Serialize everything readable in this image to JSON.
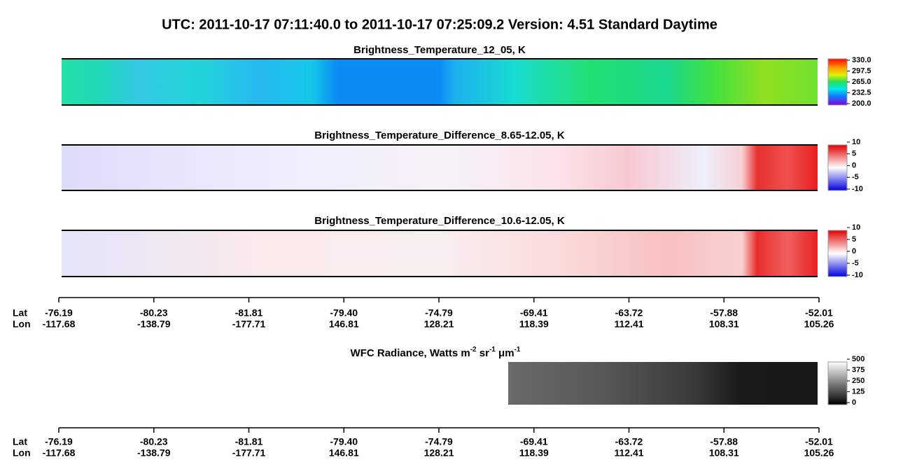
{
  "header": {
    "title": "UTC:  2011-10-17   07:11:40.0  to  2011-10-17   07:25:09.2    Version: 4.51  Standard Daytime"
  },
  "panels": [
    {
      "title": "Brightness_Temperature_12_05, K",
      "colorbar": [
        "330.0",
        "297.5",
        "265.0",
        "232.5",
        "200.0"
      ]
    },
    {
      "title": "Brightness_Temperature_Difference_8.65-12.05, K",
      "colorbar": [
        "10",
        "5",
        "0",
        "-5",
        "-10"
      ]
    },
    {
      "title": "Brightness_Temperature_Difference_10.6-12.05, K",
      "colorbar": [
        "10",
        "5",
        "0",
        "-5",
        "-10"
      ]
    },
    {
      "title_parts": [
        "WFC Radiance, Watts m",
        "-2",
        " sr",
        "-1",
        " μm",
        "-1"
      ],
      "colorbar": [
        "500",
        "375",
        "250",
        "125",
        "0"
      ]
    }
  ],
  "axis": {
    "lat_label": "Lat",
    "lon_label": "Lon",
    "lat": [
      "-76.19",
      "-80.23",
      "-81.81",
      "-79.40",
      "-74.79",
      "-69.41",
      "-63.72",
      "-57.88",
      "-52.01"
    ],
    "lon": [
      "-117.68",
      "-138.79",
      "-177.71",
      "146.81",
      "128.21",
      "118.39",
      "112.41",
      "108.31",
      "105.26"
    ]
  }
}
